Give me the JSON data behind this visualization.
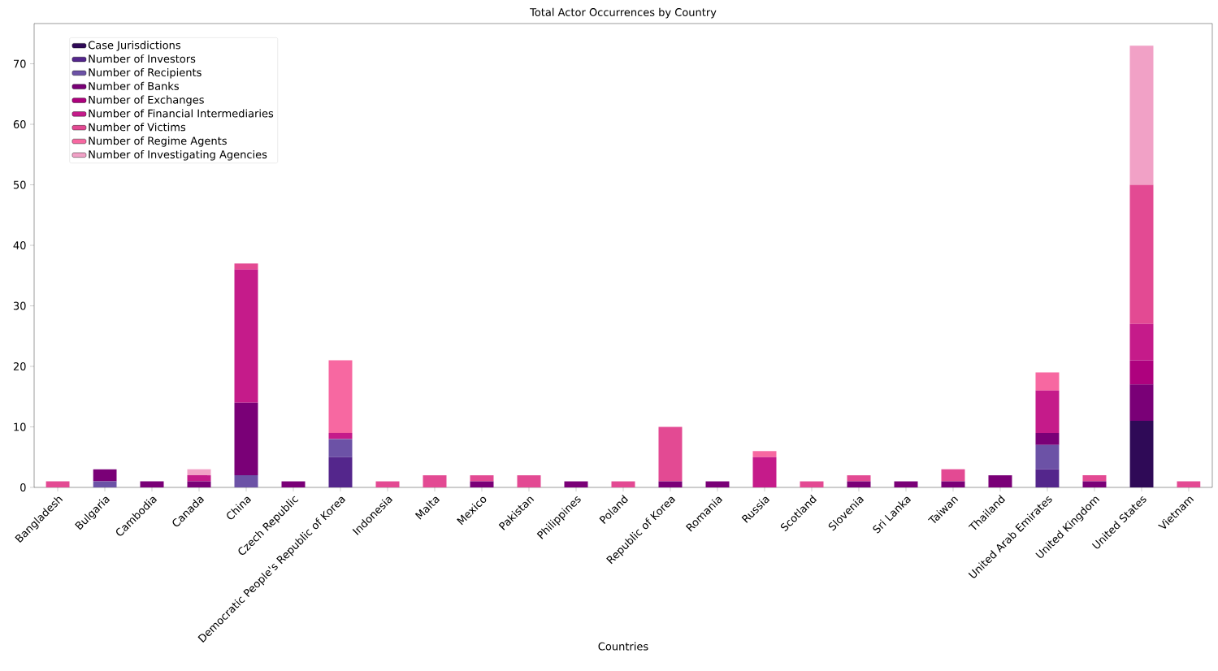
{
  "chart_data": {
    "type": "bar",
    "stacked": true,
    "title": "Total Actor Occurrences by Country",
    "xlabel": "Countries",
    "categories": [
      "Bangladesh",
      "Bulgaria",
      "Cambodia",
      "Canada",
      "China",
      "Czech Republic",
      "Democratic People's Republic of Korea",
      "Indonesia",
      "Malta",
      "Mexico",
      "Pakistan",
      "Philippines",
      "Poland",
      "Republic of Korea",
      "Romania",
      "Russia",
      "Scotland",
      "Slovenia",
      "Sri Lanka",
      "Taiwan",
      "Thailand",
      "United Arab Emirates",
      "United Kingdom",
      "United States",
      "Vietnam"
    ],
    "series": [
      {
        "name": "Case Jurisdictions",
        "color": "#2f0a57",
        "values": [
          0,
          0,
          0,
          0,
          0,
          0,
          0,
          0,
          0,
          0,
          0,
          0,
          0,
          0,
          0,
          0,
          0,
          0,
          0,
          0,
          0,
          0,
          0,
          11,
          0
        ]
      },
      {
        "name": "Number of Investors",
        "color": "#54268c",
        "values": [
          0,
          0,
          0,
          0,
          0,
          0,
          5,
          0,
          0,
          0,
          0,
          0,
          0,
          0,
          0,
          0,
          0,
          0,
          0,
          0,
          0,
          3,
          0,
          0,
          0
        ]
      },
      {
        "name": "Number of Recipients",
        "color": "#6c52a6",
        "values": [
          0,
          1,
          0,
          0,
          2,
          0,
          3,
          0,
          0,
          0,
          0,
          0,
          0,
          0,
          0,
          0,
          0,
          0,
          0,
          0,
          0,
          4,
          0,
          0,
          0
        ]
      },
      {
        "name": "Number of Banks",
        "color": "#7a0077",
        "values": [
          0,
          2,
          1,
          1,
          12,
          1,
          0,
          0,
          0,
          1,
          0,
          1,
          0,
          1,
          1,
          0,
          0,
          1,
          1,
          1,
          2,
          2,
          1,
          6,
          0
        ]
      },
      {
        "name": "Number of Exchanges",
        "color": "#ae017e",
        "values": [
          0,
          0,
          0,
          0,
          0,
          0,
          0,
          0,
          0,
          0,
          0,
          0,
          0,
          0,
          0,
          0,
          0,
          0,
          0,
          0,
          0,
          0,
          0,
          4,
          0
        ]
      },
      {
        "name": "Number of Financial Intermediaries",
        "color": "#c51b8a",
        "values": [
          0,
          0,
          0,
          1,
          22,
          0,
          1,
          0,
          0,
          0,
          0,
          0,
          0,
          0,
          0,
          5,
          0,
          0,
          0,
          0,
          0,
          7,
          0,
          6,
          0
        ]
      },
      {
        "name": "Number of Victims",
        "color": "#e34a93",
        "values": [
          1,
          0,
          0,
          0,
          1,
          0,
          0,
          1,
          2,
          1,
          2,
          0,
          1,
          9,
          0,
          0,
          1,
          1,
          0,
          2,
          0,
          0,
          1,
          23,
          1
        ]
      },
      {
        "name": "Number of Regime Agents",
        "color": "#f768a1",
        "values": [
          0,
          0,
          0,
          0,
          0,
          0,
          12,
          0,
          0,
          0,
          0,
          0,
          0,
          0,
          0,
          1,
          0,
          0,
          0,
          0,
          0,
          3,
          0,
          0,
          0
        ]
      },
      {
        "name": "Number of Investigating Agencies",
        "color": "#f1a1c6",
        "values": [
          0,
          0,
          0,
          1,
          0,
          0,
          0,
          0,
          0,
          0,
          0,
          0,
          0,
          0,
          0,
          0,
          0,
          0,
          0,
          0,
          0,
          0,
          0,
          23,
          0
        ]
      }
    ],
    "ylim": [
      0,
      76.65
    ],
    "yticks": [
      0,
      10,
      20,
      30,
      40,
      50,
      60,
      70
    ],
    "legend": "top left",
    "grid": false
  }
}
